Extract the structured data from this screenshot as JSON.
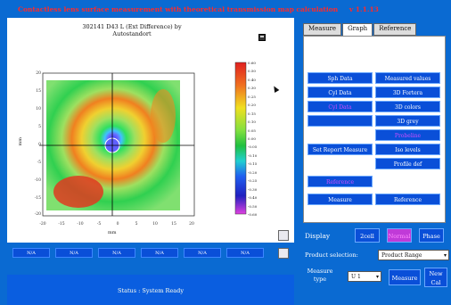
{
  "window": {
    "title": "Contactless lens surface measurement with theoretical transmission map calculation",
    "version": "v 1.1.13"
  },
  "plot": {
    "title_line1": "302141 D43 L (Ext Difference) by",
    "title_line2": "Autostandort",
    "xlabel": "mm",
    "ylabel": "mm",
    "xticks": [
      "-20",
      "-15",
      "-10",
      "-5",
      "0",
      "5",
      "10",
      "15",
      "20"
    ],
    "yticks": [
      "20",
      "15",
      "10",
      "5",
      "0",
      "-5",
      "-10",
      "-15",
      "-20"
    ],
    "colorbar_labels": [
      "0.60",
      "0.50",
      "0.40",
      "0.30",
      "0.25",
      "0.20",
      "0.15",
      "0.10",
      "0.05",
      "0.00",
      "-0.05",
      "-0.10",
      "-0.15",
      "-0.20",
      "-0.25",
      "-0.30",
      "-0.40",
      "-0.50",
      "-0.60"
    ]
  },
  "tabs": [
    "Measure",
    "Graph",
    "Reference"
  ],
  "graph_buttons": {
    "left": [
      "Sph Data",
      "Cyl Data",
      "Cyl Data",
      "",
      "Set Report Measure",
      "",
      "Reference",
      "Measure"
    ],
    "right": [
      "Measured values",
      "3D Fortera",
      "3D colors",
      "3D grey",
      "Probeline",
      "Iso levels",
      "Profile def",
      "",
      "Reference"
    ]
  },
  "display": {
    "label": "Display",
    "buttons": [
      "2cell",
      "Normal",
      "Phase"
    ]
  },
  "product_selection": {
    "label": "Product selection:",
    "value": "Product Range"
  },
  "measure_type": {
    "label": "Measure type",
    "value": "U 1",
    "measure_btn": "Measure",
    "new_cal_btn": "New Cal"
  },
  "cells": [
    "N/A",
    "N/A",
    "N/A",
    "N/A",
    "N/A",
    "N/A"
  ],
  "status": "Status : System Ready",
  "colors": {
    "background": "#0a6ad2",
    "button": "#0a4fd8",
    "title": "#ff2a2a"
  }
}
